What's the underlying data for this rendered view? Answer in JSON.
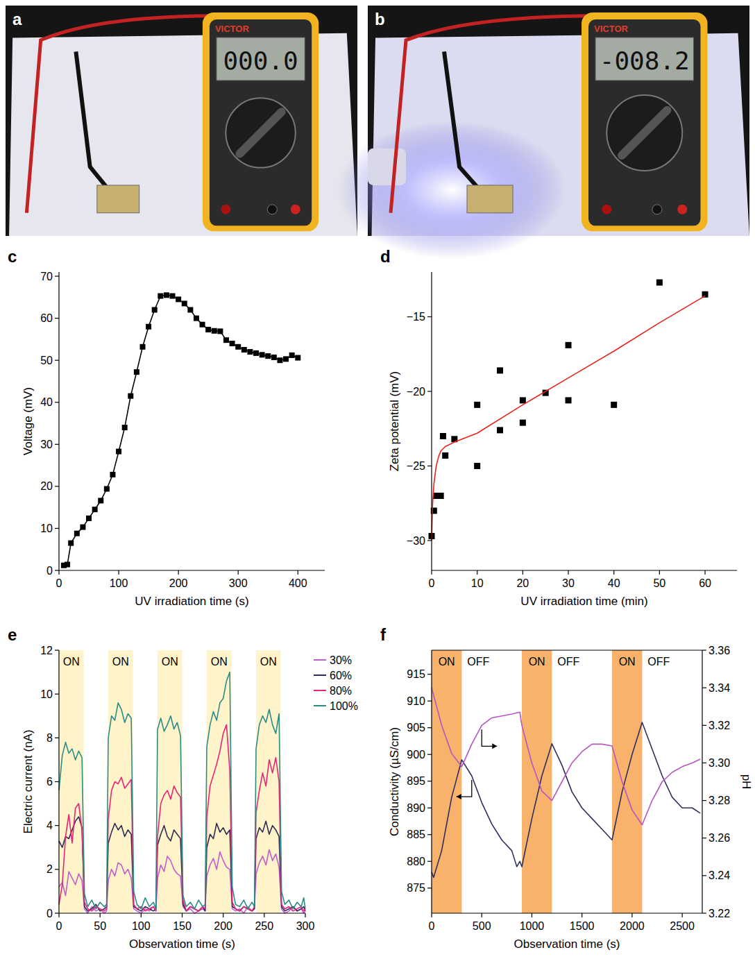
{
  "photos": [
    {
      "panel": "a",
      "brand": "VICTOR",
      "reading": "000.0"
    },
    {
      "panel": "b",
      "brand": "VICTOR",
      "reading": "-008.2"
    }
  ],
  "chart_data": [
    {
      "panel": "c",
      "type": "line",
      "xlabel": "UV irradiation time (s)",
      "ylabel": "Voltage (mV)",
      "x": [
        8,
        14,
        20,
        30,
        40,
        50,
        60,
        70,
        80,
        90,
        100,
        110,
        120,
        130,
        140,
        150,
        160,
        170,
        180,
        190,
        200,
        210,
        220,
        230,
        240,
        250,
        260,
        270,
        280,
        290,
        300,
        310,
        320,
        330,
        340,
        350,
        360,
        370,
        380,
        390,
        400
      ],
      "series": [
        {
          "values": [
            1.2,
            1.4,
            6.5,
            8.8,
            10.3,
            12.4,
            14.5,
            16.6,
            19.4,
            22.8,
            28.3,
            34.0,
            41.5,
            47.2,
            53.2,
            58.0,
            62.0,
            65.3,
            65.5,
            65.3,
            64.5,
            63.5,
            62.0,
            60.0,
            58.5,
            57.3,
            57.0,
            56.9,
            54.8,
            54.0,
            53.2,
            52.5,
            52.0,
            51.7,
            51.3,
            51.0,
            50.7,
            50.0,
            50.3,
            51.2,
            50.6
          ],
          "color": "#000000",
          "marker": "square",
          "line_style": "solid"
        }
      ],
      "xlim": [
        0,
        445
      ],
      "ylim": [
        0,
        71
      ],
      "xticks": [
        0,
        100,
        200,
        300,
        400
      ],
      "yticks": [
        0,
        10,
        20,
        30,
        40,
        50,
        60,
        70
      ]
    },
    {
      "panel": "d",
      "type": "scatter",
      "xlabel": "UV irradiation time (min)",
      "ylabel": "Zeta potential (mV)",
      "series": [
        {
          "type": "scatter",
          "x": [
            0,
            0.5,
            1,
            2,
            2.5,
            3,
            5,
            10,
            10,
            15,
            15,
            20,
            20,
            25,
            30,
            30,
            40,
            50,
            60
          ],
          "values": [
            -29.7,
            -28,
            -27,
            -27,
            -23,
            -24.3,
            -23.2,
            -25,
            -20.9,
            -22.6,
            -18.6,
            -22.1,
            -20.6,
            -20.1,
            -20.6,
            -16.9,
            -20.9,
            -12.7,
            -13.5
          ],
          "color": "#000000",
          "marker": "square"
        },
        {
          "type": "line",
          "x": [
            0,
            0.2,
            0.5,
            1,
            1.5,
            2,
            3,
            5,
            10,
            20,
            30,
            40,
            50,
            60
          ],
          "values": [
            -30,
            -27.6,
            -26.2,
            -25,
            -24.4,
            -24,
            -23.7,
            -23.4,
            -22.8,
            -20.9,
            -19.1,
            -17.3,
            -15.4,
            -13.6
          ],
          "color": "#e8231b",
          "line_style": "solid"
        }
      ],
      "xlim": [
        0,
        67
      ],
      "ylim": [
        -32,
        -12
      ],
      "xticks": [
        0,
        10,
        20,
        30,
        40,
        50,
        60
      ],
      "yticks": [
        {
          "value": -30,
          "label": "−30"
        },
        {
          "value": -25,
          "label": "−25"
        },
        {
          "value": -20,
          "label": "−20"
        },
        {
          "value": -15,
          "label": "−15"
        }
      ]
    },
    {
      "panel": "e",
      "type": "line",
      "xlabel": "Observation time (s)",
      "ylabel": "Electric current (nA)",
      "legend": "right",
      "regions": [
        {
          "start": 0,
          "end": 30,
          "label": "ON",
          "color": "#fff3c9"
        },
        {
          "start": 60,
          "end": 90,
          "label": "ON",
          "color": "#fff3c9"
        },
        {
          "start": 120,
          "end": 150,
          "label": "ON",
          "color": "#fff3c9"
        },
        {
          "start": 180,
          "end": 210,
          "label": "ON",
          "color": "#fff3c9"
        },
        {
          "start": 240,
          "end": 270,
          "label": "ON",
          "color": "#fff3c9"
        }
      ],
      "x": [
        0,
        4,
        8,
        12,
        16,
        20,
        24,
        28,
        31,
        35,
        40,
        45,
        50,
        55,
        58,
        60,
        64,
        68,
        72,
        76,
        80,
        84,
        88,
        91,
        95,
        100,
        105,
        110,
        115,
        118,
        120,
        124,
        128,
        132,
        136,
        140,
        144,
        148,
        151,
        155,
        160,
        165,
        170,
        175,
        178,
        180,
        184,
        188,
        192,
        196,
        200,
        204,
        208,
        211,
        215,
        220,
        225,
        230,
        235,
        238,
        240,
        244,
        248,
        252,
        256,
        260,
        264,
        268,
        271,
        275,
        280,
        285,
        290,
        295,
        298,
        300
      ],
      "series": [
        {
          "name": "30%",
          "color": "#c25ccc",
          "line_style": "solid",
          "values": [
            1.2,
            1.4,
            0.8,
            1.9,
            1.6,
            1.3,
            1.8,
            1.5,
            0.2,
            0.0,
            0.3,
            0.1,
            0.2,
            0.0,
            0.1,
            1.5,
            2.0,
            1.7,
            2.3,
            2.2,
            1.8,
            2.0,
            1.6,
            0.2,
            0.1,
            0.0,
            0.2,
            0.1,
            0.3,
            0.1,
            1.6,
            2.2,
            1.9,
            2.6,
            2.4,
            2.0,
            1.8,
            1.7,
            0.3,
            0.1,
            0.2,
            0.0,
            0.1,
            0.2,
            0.1,
            1.7,
            2.2,
            2.5,
            2.0,
            2.8,
            2.4,
            2.1,
            2.0,
            0.2,
            0.1,
            0.2,
            0.0,
            0.3,
            0.1,
            0.2,
            1.8,
            2.3,
            2.6,
            2.2,
            2.9,
            2.4,
            2.7,
            2.1,
            0.2,
            0.0,
            0.1,
            0.3,
            0.1,
            0.2,
            0.0,
            0.1
          ]
        },
        {
          "name": "60%",
          "color": "#2d2b52",
          "line_style": "solid",
          "values": [
            3.3,
            3.0,
            3.5,
            3.4,
            3.8,
            4.2,
            4.4,
            3.9,
            0.3,
            0.1,
            0.2,
            0.4,
            0.1,
            0.2,
            0.3,
            3.2,
            3.7,
            4.1,
            3.8,
            4.0,
            3.5,
            3.8,
            3.6,
            0.3,
            0.2,
            0.1,
            0.3,
            0.2,
            0.1,
            0.2,
            3.1,
            3.6,
            4.0,
            3.5,
            3.3,
            3.8,
            3.6,
            3.4,
            0.4,
            0.1,
            0.3,
            0.2,
            0.1,
            0.3,
            0.1,
            3.0,
            3.6,
            3.4,
            4.1,
            3.7,
            3.9,
            3.6,
            3.8,
            0.3,
            0.2,
            0.1,
            0.3,
            0.2,
            0.1,
            0.2,
            3.4,
            3.9,
            3.7,
            4.2,
            3.6,
            4.0,
            3.8,
            3.5,
            0.3,
            0.1,
            0.2,
            0.3,
            0.1,
            0.2,
            0.3,
            0.1
          ]
        },
        {
          "name": "80%",
          "color": "#e8247a",
          "line_style": "solid",
          "values": [
            0.4,
            1.3,
            3.5,
            4.5,
            3.2,
            4.8,
            5.0,
            3.8,
            0.5,
            0.2,
            0.1,
            0.3,
            0.2,
            0.1,
            0.2,
            4.3,
            5.6,
            6.0,
            5.9,
            6.2,
            5.7,
            5.9,
            6.1,
            0.4,
            0.2,
            0.3,
            0.1,
            0.2,
            0.3,
            0.1,
            3.5,
            5.0,
            5.4,
            5.6,
            5.2,
            5.8,
            5.5,
            5.3,
            0.6,
            0.1,
            0.3,
            0.2,
            0.1,
            0.3,
            0.2,
            4.4,
            5.8,
            6.3,
            6.8,
            7.4,
            8.2,
            8.6,
            6.5,
            0.5,
            0.2,
            0.1,
            0.3,
            0.2,
            0.1,
            0.3,
            4.6,
            5.6,
            6.4,
            5.8,
            7.0,
            6.4,
            7.1,
            6.0,
            0.4,
            0.2,
            0.3,
            0.1,
            0.2,
            0.3,
            0.1,
            0.2
          ]
        },
        {
          "name": "100%",
          "color": "#2b8c87",
          "line_style": "solid",
          "values": [
            5.6,
            7.2,
            7.8,
            7.3,
            7.5,
            7.0,
            7.4,
            7.1,
            0.9,
            0.3,
            0.6,
            0.2,
            0.5,
            0.3,
            0.4,
            8.0,
            9.0,
            8.8,
            9.6,
            9.3,
            8.7,
            9.1,
            8.9,
            1.0,
            0.4,
            0.2,
            0.7,
            0.3,
            0.5,
            0.2,
            8.4,
            8.9,
            8.3,
            8.6,
            9.0,
            8.4,
            8.7,
            8.1,
            0.8,
            0.3,
            0.5,
            0.2,
            0.6,
            0.3,
            0.4,
            7.6,
            8.6,
            9.2,
            8.8,
            9.6,
            9.8,
            10.6,
            11.0,
            1.2,
            0.4,
            0.3,
            0.6,
            0.2,
            0.5,
            0.3,
            7.5,
            8.6,
            9.0,
            8.7,
            9.3,
            8.6,
            8.2,
            9.1,
            1.0,
            0.4,
            0.6,
            0.2,
            0.5,
            0.3,
            0.7,
            0.2
          ]
        }
      ],
      "xlim": [
        0,
        300
      ],
      "ylim": [
        0,
        12
      ],
      "xticks": [
        0,
        50,
        100,
        150,
        200,
        250,
        300
      ],
      "yticks": [
        0,
        2,
        4,
        6,
        8,
        10,
        12
      ]
    },
    {
      "panel": "f",
      "type": "line",
      "xlabel": "Observation time (s)",
      "ylabel": "Conductivity (µS/cm)",
      "y2label": "pH",
      "regions": [
        {
          "start": 0,
          "end": 300,
          "label": "ON",
          "color": "#f8b26c"
        },
        {
          "start": 300,
          "end": 900,
          "label": "OFF"
        },
        {
          "start": 900,
          "end": 1200,
          "label": "ON",
          "color": "#f8b26c"
        },
        {
          "start": 1200,
          "end": 1800,
          "label": "OFF"
        },
        {
          "start": 1800,
          "end": 2100,
          "label": "ON",
          "color": "#f8b26c"
        },
        {
          "start": 2100,
          "end": 2700,
          "label": "OFF"
        }
      ],
      "series": [
        {
          "x": [
            0,
            20,
            100,
            200,
            300,
            400,
            500,
            600,
            700,
            800,
            850,
            880,
            900,
            1000,
            1100,
            1200,
            1300,
            1400,
            1500,
            1600,
            1700,
            1800,
            1900,
            2000,
            2100,
            2200,
            2300,
            2400,
            2500,
            2600,
            2680
          ],
          "values": [
            878,
            877,
            882,
            892,
            899,
            896,
            891,
            887,
            884,
            882,
            879,
            880,
            879,
            888,
            896,
            902,
            898,
            893,
            890,
            888,
            886,
            884,
            893,
            900,
            906,
            901,
            896,
            892,
            890,
            890,
            889
          ],
          "color": "#2e2f5e",
          "line_style": "solid"
        },
        {
          "x": [
            0,
            100,
            200,
            300,
            400,
            500,
            600,
            700,
            800,
            880,
            900,
            1000,
            1100,
            1200,
            1300,
            1400,
            1500,
            1600,
            1700,
            1800,
            1900,
            2000,
            2100,
            2200,
            2300,
            2400,
            2500,
            2600,
            2680
          ],
          "values": [
            3.34,
            3.32,
            3.305,
            3.298,
            3.31,
            3.32,
            3.324,
            3.325,
            3.326,
            3.327,
            3.32,
            3.3,
            3.285,
            3.28,
            3.29,
            3.3,
            3.306,
            3.31,
            3.31,
            3.309,
            3.29,
            3.275,
            3.267,
            3.28,
            3.29,
            3.295,
            3.298,
            3.3,
            3.302
          ],
          "color": "#b455c0",
          "line_style": "solid",
          "axis": "y2"
        }
      ],
      "xlim": [
        0,
        2700
      ],
      "ylim": [
        870.3,
        919.5
      ],
      "y2lim": [
        3.22,
        3.36
      ],
      "xticks": [
        0,
        500,
        1000,
        1500,
        2000,
        2500
      ],
      "yticks": [
        875,
        880,
        885,
        890,
        895,
        900,
        905,
        910,
        915
      ],
      "y2ticks": [
        3.22,
        3.24,
        3.26,
        3.28,
        {
          "value": 3.3,
          "label": "3.30"
        },
        3.32,
        3.34,
        3.36
      ]
    }
  ]
}
